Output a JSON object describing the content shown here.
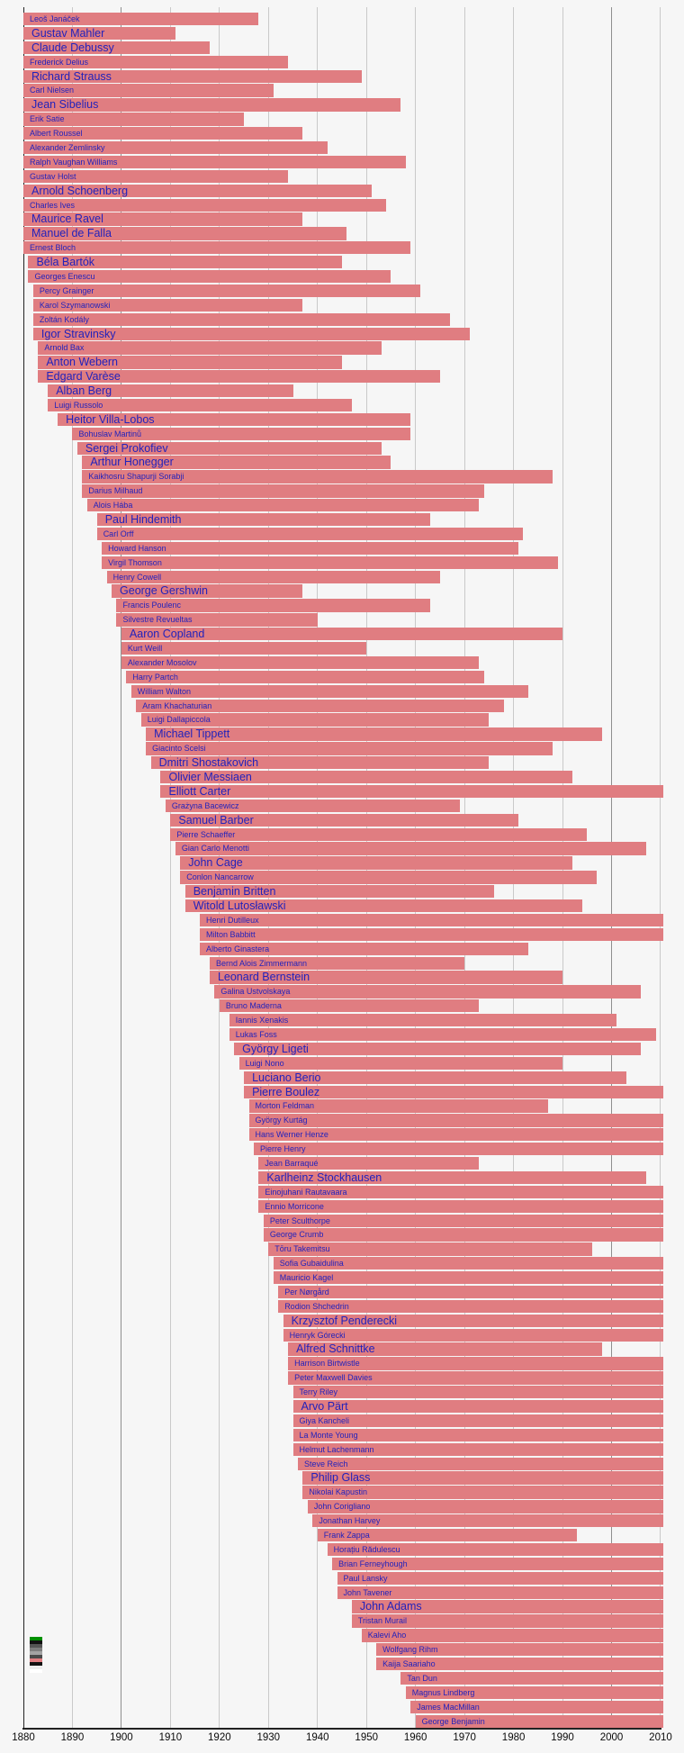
{
  "chart_data": {
    "type": "bar",
    "subtype": "timeline-lifespans",
    "description": "Horizontal timeline of 20th-century classical composers; each bar spans the composer's life from birth year (clipped at 1880) to death year, or to the chart's right edge (~2010) if no visible endpoint.",
    "title": "",
    "xlabel": "",
    "ylabel": "",
    "x_axis": {
      "min": 1880,
      "max": 2010,
      "ticks": [
        1880,
        1890,
        1900,
        1910,
        1920,
        1930,
        1940,
        1950,
        1960,
        1970,
        1980,
        1990,
        2000,
        2010
      ],
      "grid": true,
      "emphasized_gridlines": [
        1900,
        2000
      ]
    },
    "composers": [
      {
        "name": "Leoš Janáček",
        "born": 1854,
        "died": 1928,
        "size": "sm"
      },
      {
        "name": "Gustav Mahler",
        "born": 1860,
        "died": 1911,
        "size": "lg"
      },
      {
        "name": "Claude Debussy",
        "born": 1862,
        "died": 1918,
        "size": "lg"
      },
      {
        "name": "Frederick Delius",
        "born": 1862,
        "died": 1934,
        "size": "sm"
      },
      {
        "name": "Richard Strauss",
        "born": 1864,
        "died": 1949,
        "size": "lg"
      },
      {
        "name": "Carl Nielsen",
        "born": 1865,
        "died": 1931,
        "size": "sm"
      },
      {
        "name": "Jean Sibelius",
        "born": 1865,
        "died": 1957,
        "size": "lg"
      },
      {
        "name": "Erik Satie",
        "born": 1866,
        "died": 1925,
        "size": "sm"
      },
      {
        "name": "Albert Roussel",
        "born": 1869,
        "died": 1937,
        "size": "sm"
      },
      {
        "name": "Alexander Zemlinsky",
        "born": 1871,
        "died": 1942,
        "size": "sm"
      },
      {
        "name": "Ralph Vaughan Williams",
        "born": 1872,
        "died": 1958,
        "size": "sm"
      },
      {
        "name": "Gustav Holst",
        "born": 1874,
        "died": 1934,
        "size": "sm"
      },
      {
        "name": "Arnold Schoenberg",
        "born": 1874,
        "died": 1951,
        "size": "lg"
      },
      {
        "name": "Charles Ives",
        "born": 1874,
        "died": 1954,
        "size": "sm"
      },
      {
        "name": "Maurice Ravel",
        "born": 1875,
        "died": 1937,
        "size": "lg"
      },
      {
        "name": "Manuel de Falla",
        "born": 1876,
        "died": 1946,
        "size": "lg"
      },
      {
        "name": "Ernest Bloch",
        "born": 1880,
        "died": 1959,
        "size": "sm"
      },
      {
        "name": "Béla Bartók",
        "born": 1881,
        "died": 1945,
        "size": "lg"
      },
      {
        "name": "Georges Enescu",
        "born": 1881,
        "died": 1955,
        "size": "sm"
      },
      {
        "name": "Percy Grainger",
        "born": 1882,
        "died": 1961,
        "size": "sm"
      },
      {
        "name": "Karol Szymanowski",
        "born": 1882,
        "died": 1937,
        "size": "sm"
      },
      {
        "name": "Zoltán Kodály",
        "born": 1882,
        "died": 1967,
        "size": "sm"
      },
      {
        "name": "Igor Stravinsky",
        "born": 1882,
        "died": 1971,
        "size": "lg"
      },
      {
        "name": "Arnold Bax",
        "born": 1883,
        "died": 1953,
        "size": "sm"
      },
      {
        "name": "Anton Webern",
        "born": 1883,
        "died": 1945,
        "size": "lg"
      },
      {
        "name": "Edgard Varèse",
        "born": 1883,
        "died": 1965,
        "size": "lg"
      },
      {
        "name": "Alban Berg",
        "born": 1885,
        "died": 1935,
        "size": "lg"
      },
      {
        "name": "Luigi Russolo",
        "born": 1885,
        "died": 1947,
        "size": "sm"
      },
      {
        "name": "Heitor Villa-Lobos",
        "born": 1887,
        "died": 1959,
        "size": "lg"
      },
      {
        "name": "Bohuslav Martinů",
        "born": 1890,
        "died": 1959,
        "size": "sm"
      },
      {
        "name": "Sergei Prokofiev",
        "born": 1891,
        "died": 1953,
        "size": "lg"
      },
      {
        "name": "Arthur Honegger",
        "born": 1892,
        "died": 1955,
        "size": "lg"
      },
      {
        "name": "Kaikhosru Shapurji Sorabji",
        "born": 1892,
        "died": 1988,
        "size": "sm"
      },
      {
        "name": "Darius Milhaud",
        "born": 1892,
        "died": 1974,
        "size": "sm"
      },
      {
        "name": "Alois Hába",
        "born": 1893,
        "died": 1973,
        "size": "sm"
      },
      {
        "name": "Paul Hindemith",
        "born": 1895,
        "died": 1963,
        "size": "lg"
      },
      {
        "name": "Carl Orff",
        "born": 1895,
        "died": 1982,
        "size": "sm"
      },
      {
        "name": "Howard Hanson",
        "born": 1896,
        "died": 1981,
        "size": "sm"
      },
      {
        "name": "Virgil Thomson",
        "born": 1896,
        "died": 1989,
        "size": "sm"
      },
      {
        "name": "Henry Cowell",
        "born": 1897,
        "died": 1965,
        "size": "sm"
      },
      {
        "name": "George Gershwin",
        "born": 1898,
        "died": 1937,
        "size": "lg"
      },
      {
        "name": "Francis Poulenc",
        "born": 1899,
        "died": 1963,
        "size": "sm"
      },
      {
        "name": "Silvestre Revueltas",
        "born": 1899,
        "died": 1940,
        "size": "sm"
      },
      {
        "name": "Aaron Copland",
        "born": 1900,
        "died": 1990,
        "size": "lg"
      },
      {
        "name": "Kurt Weill",
        "born": 1900,
        "died": 1950,
        "size": "sm"
      },
      {
        "name": "Alexander Mosolov",
        "born": 1900,
        "died": 1973,
        "size": "sm"
      },
      {
        "name": "Harry Partch",
        "born": 1901,
        "died": 1974,
        "size": "sm"
      },
      {
        "name": "William Walton",
        "born": 1902,
        "died": 1983,
        "size": "sm"
      },
      {
        "name": "Aram Khachaturian",
        "born": 1903,
        "died": 1978,
        "size": "sm"
      },
      {
        "name": "Luigi Dallapiccola",
        "born": 1904,
        "died": 1975,
        "size": "sm"
      },
      {
        "name": "Michael Tippett",
        "born": 1905,
        "died": 1998,
        "size": "lg"
      },
      {
        "name": "Giacinto Scelsi",
        "born": 1905,
        "died": 1988,
        "size": "sm"
      },
      {
        "name": "Dmitri Shostakovich",
        "born": 1906,
        "died": 1975,
        "size": "lg"
      },
      {
        "name": "Olivier Messiaen",
        "born": 1908,
        "died": 1992,
        "size": "lg"
      },
      {
        "name": "Elliott Carter",
        "born": 1908,
        "died": null,
        "size": "lg"
      },
      {
        "name": "Grażyna Bacewicz",
        "born": 1909,
        "died": 1969,
        "size": "sm"
      },
      {
        "name": "Samuel Barber",
        "born": 1910,
        "died": 1981,
        "size": "lg"
      },
      {
        "name": "Pierre Schaeffer",
        "born": 1910,
        "died": 1995,
        "size": "sm"
      },
      {
        "name": "Gian Carlo Menotti",
        "born": 1911,
        "died": 2007,
        "size": "sm"
      },
      {
        "name": "John Cage",
        "born": 1912,
        "died": 1992,
        "size": "lg"
      },
      {
        "name": "Conlon Nancarrow",
        "born": 1912,
        "died": 1997,
        "size": "sm"
      },
      {
        "name": "Benjamin Britten",
        "born": 1913,
        "died": 1976,
        "size": "lg"
      },
      {
        "name": "Witold Lutosławski",
        "born": 1913,
        "died": 1994,
        "size": "lg"
      },
      {
        "name": "Henri Dutilleux",
        "born": 1916,
        "died": null,
        "size": "sm"
      },
      {
        "name": "Milton Babbitt",
        "born": 1916,
        "died": null,
        "size": "sm"
      },
      {
        "name": "Alberto Ginastera",
        "born": 1916,
        "died": 1983,
        "size": "sm"
      },
      {
        "name": "Bernd Alois Zimmermann",
        "born": 1918,
        "died": 1970,
        "size": "sm"
      },
      {
        "name": "Leonard Bernstein",
        "born": 1918,
        "died": 1990,
        "size": "lg"
      },
      {
        "name": "Galina Ustvolskaya",
        "born": 1919,
        "died": 2006,
        "size": "sm"
      },
      {
        "name": "Bruno Maderna",
        "born": 1920,
        "died": 1973,
        "size": "sm"
      },
      {
        "name": "Iannis Xenakis",
        "born": 1922,
        "died": 2001,
        "size": "sm"
      },
      {
        "name": "Lukas Foss",
        "born": 1922,
        "died": 2009,
        "size": "sm"
      },
      {
        "name": "György Ligeti",
        "born": 1923,
        "died": 2006,
        "size": "lg"
      },
      {
        "name": "Luigi Nono",
        "born": 1924,
        "died": 1990,
        "size": "sm"
      },
      {
        "name": "Luciano Berio",
        "born": 1925,
        "died": 2003,
        "size": "lg"
      },
      {
        "name": "Pierre Boulez",
        "born": 1925,
        "died": null,
        "size": "lg"
      },
      {
        "name": "Morton Feldman",
        "born": 1926,
        "died": 1987,
        "size": "sm"
      },
      {
        "name": "György Kurtág",
        "born": 1926,
        "died": null,
        "size": "sm"
      },
      {
        "name": "Hans Werner Henze",
        "born": 1926,
        "died": null,
        "size": "sm"
      },
      {
        "name": "Pierre Henry",
        "born": 1927,
        "died": null,
        "size": "sm"
      },
      {
        "name": "Jean Barraqué",
        "born": 1928,
        "died": 1973,
        "size": "sm"
      },
      {
        "name": "Karlheinz Stockhausen",
        "born": 1928,
        "died": 2007,
        "size": "lg"
      },
      {
        "name": "Einojuhani Rautavaara",
        "born": 1928,
        "died": null,
        "size": "sm"
      },
      {
        "name": "Ennio Morricone",
        "born": 1928,
        "died": null,
        "size": "sm"
      },
      {
        "name": "Peter Sculthorpe",
        "born": 1929,
        "died": null,
        "size": "sm"
      },
      {
        "name": "George Crumb",
        "born": 1929,
        "died": null,
        "size": "sm"
      },
      {
        "name": "Tōru Takemitsu",
        "born": 1930,
        "died": 1996,
        "size": "sm"
      },
      {
        "name": "Sofia Gubaidulina",
        "born": 1931,
        "died": null,
        "size": "sm"
      },
      {
        "name": "Mauricio Kagel",
        "born": 1931,
        "died": null,
        "size": "sm"
      },
      {
        "name": "Per Nørgård",
        "born": 1932,
        "died": null,
        "size": "sm"
      },
      {
        "name": "Rodion Shchedrin",
        "born": 1932,
        "died": null,
        "size": "sm"
      },
      {
        "name": "Krzysztof Penderecki",
        "born": 1933,
        "died": null,
        "size": "lg"
      },
      {
        "name": "Henryk Górecki",
        "born": 1933,
        "died": null,
        "size": "sm"
      },
      {
        "name": "Alfred Schnittke",
        "born": 1934,
        "died": 1998,
        "size": "lg"
      },
      {
        "name": "Harrison Birtwistle",
        "born": 1934,
        "died": null,
        "size": "sm"
      },
      {
        "name": "Peter Maxwell Davies",
        "born": 1934,
        "died": null,
        "size": "sm"
      },
      {
        "name": "Terry Riley",
        "born": 1935,
        "died": null,
        "size": "sm"
      },
      {
        "name": "Arvo Pärt",
        "born": 1935,
        "died": null,
        "size": "lg"
      },
      {
        "name": "Giya Kancheli",
        "born": 1935,
        "died": null,
        "size": "sm"
      },
      {
        "name": "La Monte Young",
        "born": 1935,
        "died": null,
        "size": "sm"
      },
      {
        "name": "Helmut Lachenmann",
        "born": 1935,
        "died": null,
        "size": "sm"
      },
      {
        "name": "Steve Reich",
        "born": 1936,
        "died": null,
        "size": "sm"
      },
      {
        "name": "Philip Glass",
        "born": 1937,
        "died": null,
        "size": "lg"
      },
      {
        "name": "Nikolai Kapustin",
        "born": 1937,
        "died": null,
        "size": "sm"
      },
      {
        "name": "John Corigliano",
        "born": 1938,
        "died": null,
        "size": "sm"
      },
      {
        "name": "Jonathan Harvey",
        "born": 1939,
        "died": null,
        "size": "sm"
      },
      {
        "name": "Frank Zappa",
        "born": 1940,
        "died": 1993,
        "size": "sm"
      },
      {
        "name": "Horațiu Rădulescu",
        "born": 1942,
        "died": null,
        "size": "sm"
      },
      {
        "name": "Brian Ferneyhough",
        "born": 1943,
        "died": null,
        "size": "sm"
      },
      {
        "name": "Paul Lansky",
        "born": 1944,
        "died": null,
        "size": "sm"
      },
      {
        "name": "John Tavener",
        "born": 1944,
        "died": null,
        "size": "sm"
      },
      {
        "name": "John Adams",
        "born": 1947,
        "died": null,
        "size": "lg"
      },
      {
        "name": "Tristan Murail",
        "born": 1947,
        "died": null,
        "size": "sm"
      },
      {
        "name": "Kalevi Aho",
        "born": 1949,
        "died": null,
        "size": "sm"
      },
      {
        "name": "Wolfgang Rihm",
        "born": 1952,
        "died": null,
        "size": "sm"
      },
      {
        "name": "Kaija Saariaho",
        "born": 1952,
        "died": null,
        "size": "sm"
      },
      {
        "name": "Tan Dun",
        "born": 1957,
        "died": null,
        "size": "sm"
      },
      {
        "name": "Magnus Lindberg",
        "born": 1958,
        "died": null,
        "size": "sm"
      },
      {
        "name": "James MacMillan",
        "born": 1959,
        "died": null,
        "size": "sm"
      },
      {
        "name": "George Benjamin",
        "born": 1960,
        "died": null,
        "size": "sm"
      }
    ]
  },
  "colors": {
    "background": "#f6f6f6",
    "bar": "#e07d81",
    "label_text": "#2222bb",
    "gridline": "#c9c9c9",
    "gridline_century": "#8f8f8f",
    "axis": "#222222",
    "tick_text": "#0a0a0a"
  },
  "color_key": {
    "swatches": [
      "#009000",
      "#111111",
      "#555555",
      "#7d7d7d",
      "#a3a3a3",
      "#4a4a4a",
      "#e07d81",
      "#111111",
      "#ededed",
      "#ffffff"
    ]
  }
}
